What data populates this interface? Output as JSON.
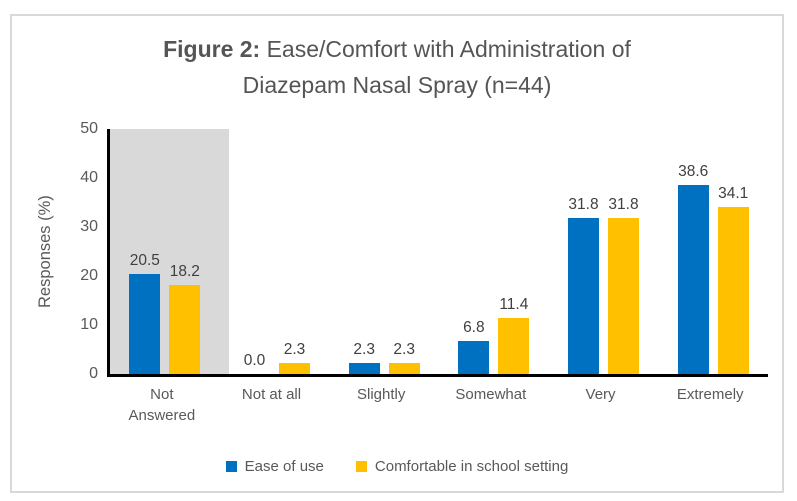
{
  "title": {
    "bold": "Figure 2:",
    "line1_rest": " Ease/Comfort with Administration of",
    "line2": "Diazepam Nasal Spray (n=44)"
  },
  "colors": {
    "series_blue": "#0070C0",
    "series_yellow": "#FFC000",
    "highlight_band": "#D9D9D9",
    "frame_border": "#D9D9D9",
    "axis_line": "#000000",
    "text_gray": "#595959"
  },
  "chart_data": {
    "type": "bar",
    "title": "Figure 2: Ease/Comfort with Administration of Diazepam Nasal Spray (n=44)",
    "categories": [
      "Not Answered",
      "Not at all",
      "Slightly",
      "Somewhat",
      "Very",
      "Extremely"
    ],
    "series": [
      {
        "name": "Ease of use",
        "color": "#0070C0",
        "values": [
          20.5,
          0.0,
          2.3,
          6.8,
          31.8,
          38.6
        ]
      },
      {
        "name": "Comfortable in school setting",
        "color": "#FFC000",
        "values": [
          18.2,
          2.3,
          2.3,
          11.4,
          31.8,
          34.1
        ]
      }
    ],
    "xlabel": "",
    "ylabel": "Responses (%)",
    "ylim": [
      0,
      50
    ],
    "yticks": [
      0,
      10,
      20,
      30,
      40,
      50
    ],
    "grid": false,
    "data_labels": true,
    "data_label_decimals": 1,
    "legend_position": "bottom",
    "highlight_band": {
      "category": "Not Answered",
      "color": "#D9D9D9"
    }
  }
}
